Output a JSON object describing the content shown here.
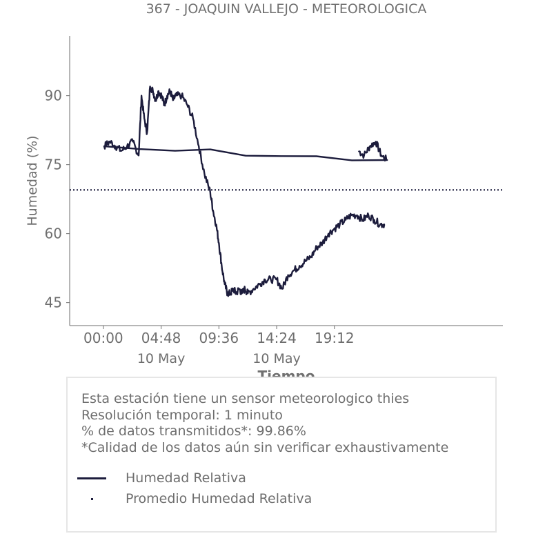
{
  "chart_data": {
    "type": "line",
    "title": "367 - JOAQUIN VALLEJO - METEOROLOGICA",
    "xlabel": "Tiempo",
    "ylabel": "Humedad (%)",
    "ylim": [
      40,
      103
    ],
    "xlim": [
      "09 May 21:12",
      "11 May 09:12"
    ],
    "yticks": [
      45,
      60,
      75,
      90
    ],
    "xticks": [
      {
        "value": "00:00",
        "date": ""
      },
      {
        "value": "04:48",
        "date": "10 May"
      },
      {
        "value": "09:36",
        "date": ""
      },
      {
        "value": "14:24",
        "date": "10 May"
      },
      {
        "value": "19:12",
        "date": ""
      }
    ],
    "grid": false,
    "series": [
      {
        "name": "Humedad Relativa",
        "style": "solid",
        "color": "#1c1c3c",
        "x": [
          "21:12",
          "21:40",
          "22:09",
          "22:38",
          "23:06",
          "23:35",
          "00:04",
          "00:32",
          "01:01",
          "01:30",
          "01:58",
          "02:27",
          "02:56",
          "03:10",
          "03:24",
          "03:38",
          "03:53",
          "04:07",
          "04:21",
          "04:35",
          "04:50",
          "05:04",
          "05:18",
          "05:33",
          "05:47",
          "06:01",
          "06:30",
          "06:58",
          "07:27",
          "07:56",
          "08:24",
          "08:53",
          "09:07",
          "09:22",
          "09:36",
          "09:50",
          "10:05",
          "10:19",
          "10:34",
          "10:48",
          "11:02",
          "11:17",
          "11:31",
          "11:46",
          "12:00",
          "12:29",
          "12:58",
          "13:26",
          "13:55",
          "14:24",
          "14:52",
          "15:21",
          "15:50",
          "16:18",
          "16:47",
          "17:16",
          "17:44",
          "18:13",
          "18:42",
          "19:10",
          "19:39",
          "20:08",
          "20:36",
          "21:05",
          "21:34",
          "22:02",
          "22:31",
          "23:00",
          "23:24"
        ],
        "y": [
          78,
          77,
          79,
          80,
          77,
          76,
          79,
          80,
          79,
          78,
          79,
          80,
          77,
          90,
          85,
          82,
          92,
          91,
          89,
          91,
          90,
          88,
          90,
          91,
          89,
          90,
          90,
          88,
          85,
          79,
          73,
          69,
          65,
          62,
          58,
          53,
          49,
          47,
          47,
          48,
          47,
          48,
          47,
          48,
          47,
          48,
          49,
          50,
          50,
          50,
          48,
          51,
          52,
          53,
          54,
          55,
          57,
          58,
          60,
          61,
          62,
          63,
          64,
          64,
          63,
          64,
          63,
          62,
          62
        ]
      },
      {
        "name": "Promedio Humedad Relativa",
        "style": "dotted",
        "color": "#1c1c3c",
        "y": 69.5
      }
    ]
  },
  "info": {
    "lines": [
      "Esta estación tiene un sensor meteorologico thies",
      "Resolución temporal: 1 minuto",
      "% de datos transmitidos*: 99.86%",
      "*Calidad de los datos aún sin verificar exhaustivamente"
    ]
  }
}
